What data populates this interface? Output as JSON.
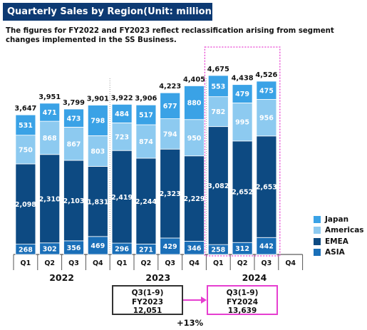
{
  "chart_data": {
    "type": "bar",
    "stacked": true,
    "title": "Quarterly Sales by Region(Unit: million yen)",
    "note": "The figures for FY2022 and FY2023 reflect reclassification arising from segment changes implemented in the SS Business.",
    "categories": [
      "Q1",
      "Q2",
      "Q3",
      "Q4",
      "Q1",
      "Q2",
      "Q3",
      "Q4",
      "Q1",
      "Q2",
      "Q3",
      "Q4"
    ],
    "year_groups": [
      {
        "label": "2022",
        "start": 0,
        "count": 4
      },
      {
        "label": "2023",
        "start": 4,
        "count": 4
      },
      {
        "label": "2024",
        "start": 8,
        "count": 4
      }
    ],
    "series": [
      {
        "name": "ASIA",
        "color": "#1a6fb8",
        "values": [
          268,
          302,
          356,
          469,
          296,
          271,
          429,
          346,
          258,
          312,
          442,
          null
        ]
      },
      {
        "name": "EMEA",
        "color": "#0d4a82",
        "values": [
          2098,
          2310,
          2103,
          1831,
          2419,
          2244,
          2323,
          2229,
          3082,
          2652,
          2653,
          null
        ]
      },
      {
        "name": "Americas",
        "color": "#8dcaf0",
        "values": [
          750,
          868,
          867,
          803,
          723,
          874,
          794,
          950,
          782,
          995,
          956,
          null
        ]
      },
      {
        "name": "Japan",
        "color": "#3aa2e6",
        "values": [
          531,
          471,
          473,
          798,
          484,
          517,
          677,
          880,
          553,
          479,
          475,
          null
        ]
      }
    ],
    "totals": [
      "3,647",
      "3,951",
      "3,799",
      "3,901",
      "3,922",
      "3,906",
      "4,223",
      "4,405",
      "4,675",
      "4,438",
      "4,526",
      ""
    ],
    "legend_order": [
      "Japan",
      "Americas",
      "EMEA",
      "ASIA"
    ],
    "legend_position": "right",
    "ylim": [
      0,
      5000
    ],
    "highlight": {
      "from_category": 8,
      "to_category": 10,
      "color": "#e63fd0"
    }
  },
  "summary": {
    "previous": {
      "line1": "Q3(1-9)",
      "line2": "FY2023",
      "line3": "12,051"
    },
    "current": {
      "line1": "Q3(1-9)",
      "line2": "FY2024",
      "line3": "13,639"
    },
    "growth": "+13%"
  },
  "colors": {
    "title_bg": "#0d3a73",
    "highlight": "#e63fd0",
    "arrow": "#e63fd0"
  }
}
